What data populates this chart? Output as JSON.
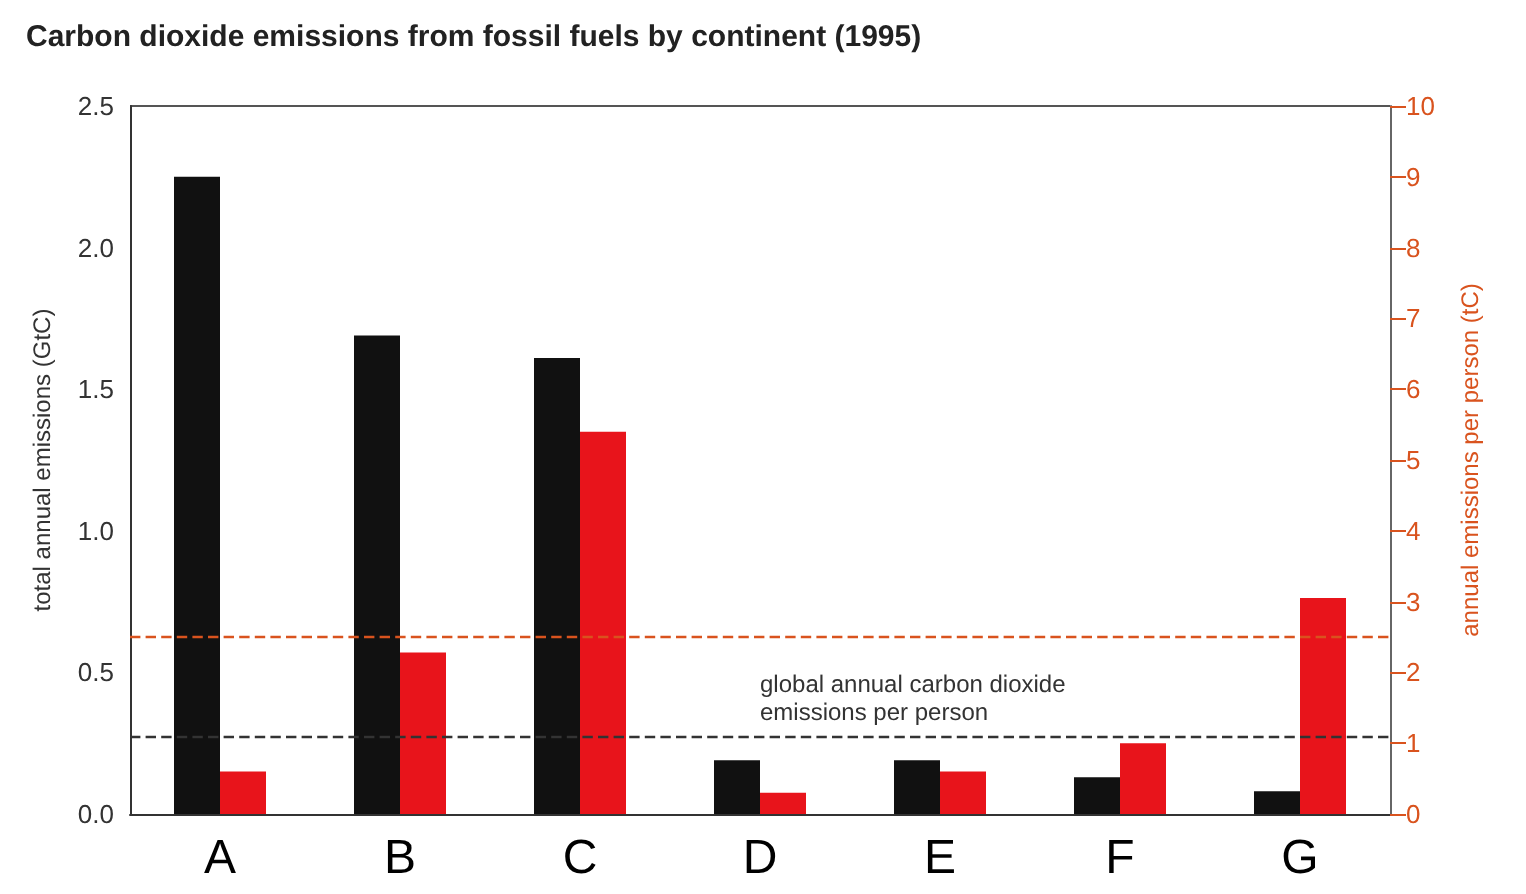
{
  "chart_data": {
    "type": "bar",
    "title": "Carbon dioxide emissions from fossil fuels by continent (1995)",
    "ylabel": "total annual emissions (GtC)",
    "y2label": "annual emissions per person (tC)",
    "categories": [
      "A",
      "B",
      "C",
      "D",
      "E",
      "F",
      "G"
    ],
    "series": [
      {
        "color": "#111111",
        "values": [
          2.25,
          1.69,
          1.61,
          0.19,
          0.19,
          0.13,
          0.08
        ]
      },
      {
        "color": "#e8141b",
        "axis": "y2",
        "values": [
          0.6,
          2.28,
          5.4,
          0.3,
          0.6,
          1.0,
          3.05
        ]
      }
    ],
    "ylim": [
      0,
      2.5
    ],
    "yticks": [
      {
        "value": 0,
        "label": "0.0"
      },
      {
        "value": 0.5,
        "label": "0.5"
      },
      {
        "value": 1,
        "label": "1.0"
      },
      {
        "value": 1.5,
        "label": "1.5"
      },
      {
        "value": 2,
        "label": "2.0"
      },
      {
        "value": 2.5,
        "label": "2.5"
      }
    ],
    "y2lim": [
      0,
      10
    ],
    "y2ticks": [
      0,
      1,
      2,
      3,
      4,
      5,
      6,
      7,
      8,
      9,
      10
    ],
    "ref_lines": [
      {
        "axis": "y2",
        "value": 2.5,
        "color": "#d9531e",
        "line_style": "dashed"
      },
      {
        "axis": "y2",
        "value": 1.1,
        "color": "#333333",
        "line_style": "dashed",
        "label": "global annual carbon dioxide\nemissions per person"
      }
    ],
    "grid": false
  }
}
